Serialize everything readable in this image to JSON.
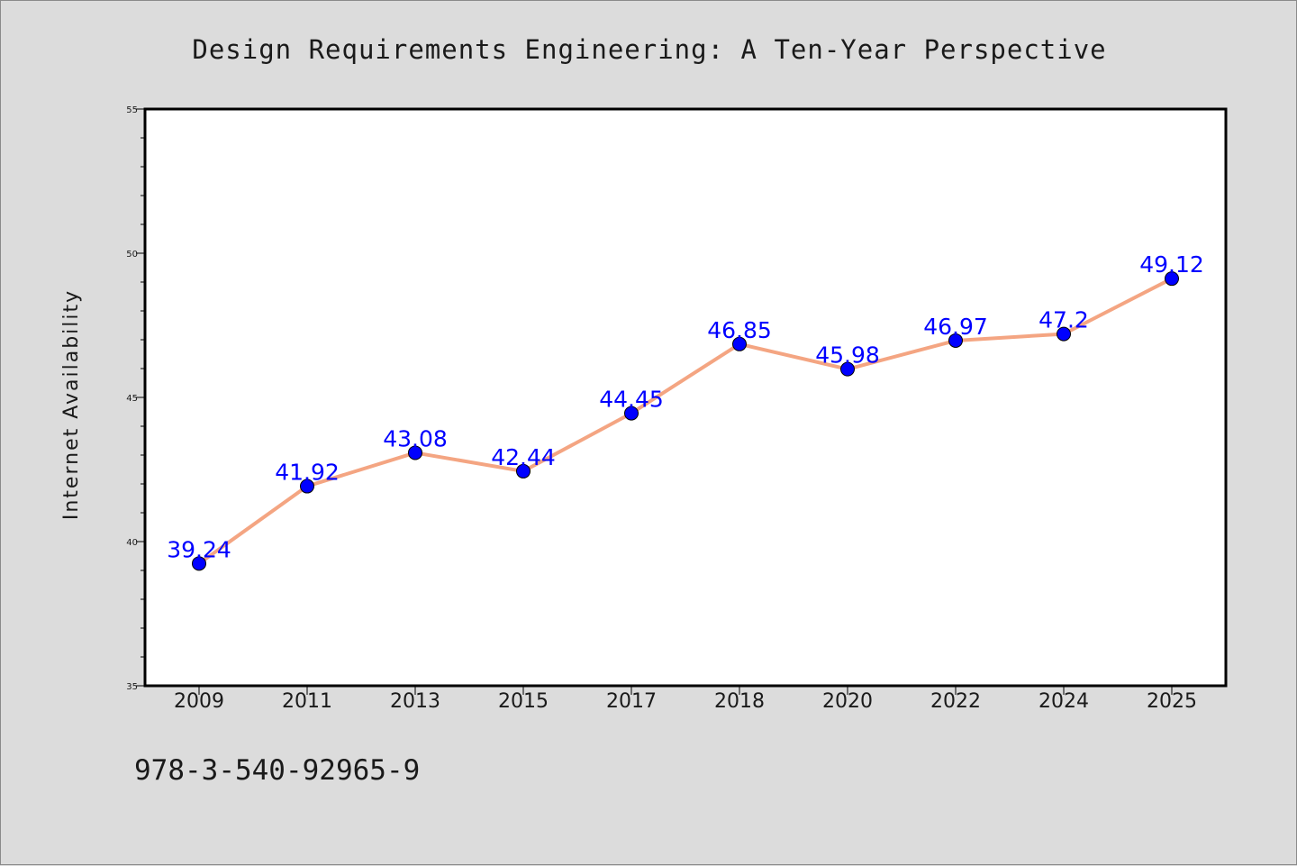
{
  "chart_data": {
    "type": "line",
    "title": "Design Requirements Engineering: A Ten-Year Perspective",
    "xlabel": "",
    "ylabel": "Internet Availability",
    "categories": [
      "2009",
      "2011",
      "2013",
      "2015",
      "2017",
      "2018",
      "2020",
      "2022",
      "2024",
      "2025"
    ],
    "series": [
      {
        "values": [
          39.24,
          41.92,
          43.08,
          42.44,
          44.45,
          46.85,
          45.98,
          46.97,
          47.2,
          49.12
        ],
        "labels": [
          "39.24",
          "41.92",
          "43.08",
          "42.44",
          "44.45",
          "46.85",
          "45.98",
          "46.97",
          "47.2",
          "49.12"
        ],
        "line_color": "#f4a582",
        "marker_color": "#0000ff"
      }
    ],
    "ylim": [
      35,
      55
    ],
    "yticks": [
      35,
      40,
      45,
      50,
      55
    ],
    "ytick_labels": [
      "35",
      "40",
      "45",
      "50",
      "55"
    ],
    "y_minor_step": 1,
    "grid": false,
    "legend": "none",
    "label_color": "#0000ff",
    "background_color": "#dcdcdc",
    "plot_background_color": "#ffffff"
  },
  "footnote": "978-3-540-92965-9"
}
